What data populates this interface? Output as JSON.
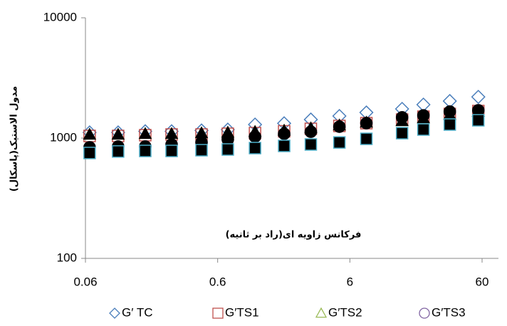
{
  "chart_data": {
    "type": "scatter",
    "y_label": "مدول الاستیک(پاسکال)",
    "annotation": "فرکانس زاویه ای(راد بر ثانیه)",
    "x": [
      0.0645,
      0.106,
      0.17,
      0.269,
      0.453,
      0.716,
      1.15,
      1.91,
      3.04,
      5.0,
      8.0,
      14.9,
      21.6,
      34.2,
      56.2
    ],
    "series": [
      {
        "name": "G′ TC",
        "color": "#4a7ebb",
        "marker": "diamond",
        "filled": false,
        "values": [
          1114,
          1114,
          1139,
          1139,
          1157,
          1176,
          1295,
          1327,
          1426,
          1525,
          1632,
          1748,
          1897,
          2032,
          2200
        ]
      },
      {
        "name": "G′TS1",
        "color": "#c0504d",
        "marker": "square",
        "filled": false,
        "values": [
          1042,
          1042,
          1057,
          1071,
          1071,
          1086,
          1101,
          1139,
          1194,
          1262,
          1331,
          1426,
          1507,
          1589,
          1679
        ]
      },
      {
        "name": "G′TS2",
        "color": "#9bbb59",
        "marker": "triangle",
        "filled": false,
        "values": [
          1071,
          1071,
          1086,
          1086,
          1101,
          1114,
          1130,
          1157,
          1210,
          1279,
          1349,
          1387,
          1465,
          1565,
          1660
        ]
      },
      {
        "name": "G′TS3",
        "color": "#8064a2",
        "marker": "circle",
        "filled": false,
        "values": [
          838,
          851,
          851,
          885,
          920,
          973,
          1028,
          1086,
          1130,
          1244,
          1331,
          1486,
          1545,
          1660,
          1702
        ]
      },
      {
        "color": "#000000",
        "marker": "triangle",
        "filled": true,
        "values": [
          1071,
          1071,
          1086,
          1086,
          1101,
          1114,
          1130,
          1157,
          1210,
          1279,
          1349,
          1387,
          1465,
          1565,
          1660
        ]
      },
      {
        "color": "#000000",
        "marker": "circle",
        "filled": true,
        "values": [
          838,
          851,
          851,
          885,
          920,
          973,
          1028,
          1086,
          1130,
          1244,
          1331,
          1486,
          1545,
          1660,
          1702
        ]
      },
      {
        "color": "#000000",
        "marker": "square",
        "filled": true,
        "values": [
          752,
          774,
          782,
          782,
          793,
          804,
          826,
          861,
          885,
          920,
          986,
          1099,
          1178,
          1296,
          1406
        ]
      }
    ],
    "xlim": [
      0.06,
      60
    ],
    "xticks": [
      0.06,
      0.6,
      6,
      60
    ],
    "xscale": "log",
    "ylim": [
      100,
      10000
    ],
    "yticks": [
      100,
      1000,
      10000
    ],
    "yscale": "log",
    "legend": "bottom"
  }
}
